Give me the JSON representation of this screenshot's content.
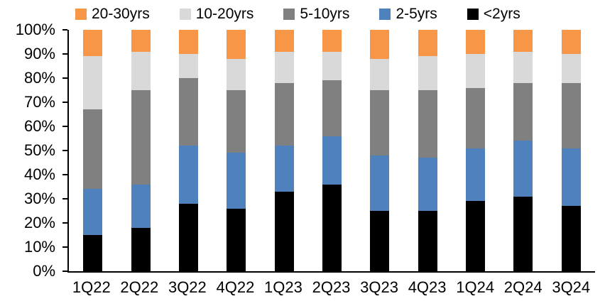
{
  "chart_data": {
    "type": "bar",
    "stacked": true,
    "units": "percent",
    "title": "",
    "xlabel": "",
    "ylabel": "",
    "grid": false,
    "categories": [
      "1Q22",
      "2Q22",
      "3Q22",
      "4Q22",
      "1Q23",
      "2Q23",
      "3Q23",
      "4Q23",
      "1Q24",
      "2Q24",
      "3Q24"
    ],
    "series": [
      {
        "name": "<2yrs",
        "color": "#000000",
        "values": [
          15,
          18,
          28,
          26,
          33,
          36,
          25,
          25,
          29,
          31,
          27
        ]
      },
      {
        "name": "2-5yrs",
        "color": "#4F81BD",
        "values": [
          19,
          18,
          24,
          23,
          19,
          20,
          23,
          22,
          22,
          23,
          24
        ]
      },
      {
        "name": "5-10yrs",
        "color": "#808080",
        "values": [
          33,
          39,
          28,
          26,
          26,
          23,
          27,
          28,
          25,
          24,
          27
        ]
      },
      {
        "name": "10-20yrs",
        "color": "#D9D9D9",
        "values": [
          22,
          16,
          10,
          13,
          13,
          12,
          13,
          14,
          14,
          13,
          12
        ]
      },
      {
        "name": "20-30yrs",
        "color": "#F79646",
        "values": [
          11,
          9,
          10,
          12,
          9,
          9,
          12,
          11,
          10,
          9,
          10
        ]
      }
    ],
    "legend": {
      "position": "top",
      "order": [
        "20-30yrs",
        "10-20yrs",
        "5-10yrs",
        "2-5yrs",
        "<2yrs"
      ]
    },
    "y_axis": {
      "min": 0,
      "max": 100,
      "tick_step": 10,
      "tick_labels": [
        "0%",
        "10%",
        "20%",
        "30%",
        "40%",
        "50%",
        "60%",
        "70%",
        "80%",
        "90%",
        "100%"
      ]
    }
  }
}
